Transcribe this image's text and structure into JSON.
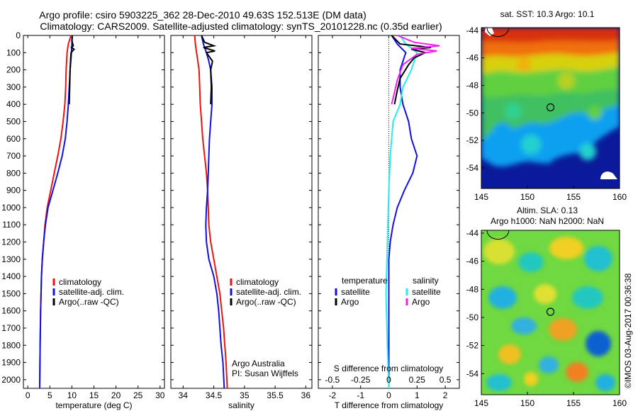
{
  "header": {
    "title_line1": "Argo profile: csiro 5903225_362 28-Dec-2010 49.63S 152.513E (DM data)",
    "title_line2": "Climatology: CARS2009. Satellite-adjusted climatology: synTS_20101228.nc (0.35d earlier)"
  },
  "colors": {
    "climatology": "#ee1111",
    "satellite": "#1010e0",
    "argo": "#000000",
    "salinity_satellite": "#22eeee",
    "salinity_argo": "#ee22ee"
  },
  "footer_text": "©IMOS 03-Aug-2017 00:36:38",
  "chart_data": [
    {
      "type": "line",
      "panel": "temperature",
      "xlabel": "temperature (deg C)",
      "ylabel": "",
      "xlim": [
        -1,
        31
      ],
      "ylim": [
        2050,
        0
      ],
      "xticks": [
        0,
        5,
        10,
        15,
        20,
        25,
        30
      ],
      "yticks": [
        0,
        100,
        200,
        300,
        400,
        500,
        600,
        700,
        800,
        900,
        1000,
        1100,
        1200,
        1300,
        1400,
        1500,
        1600,
        1700,
        1800,
        1900,
        2000
      ],
      "legend": [
        "climatology",
        "satellite-adj. clim.",
        "Argo(..raw -QC)"
      ],
      "series": [
        {
          "name": "climatology",
          "color": "#ee1111",
          "points": [
            [
              9.8,
              0
            ],
            [
              9.2,
              50
            ],
            [
              8.9,
              100
            ],
            [
              8.7,
              200
            ],
            [
              8.6,
              300
            ],
            [
              8.4,
              400
            ],
            [
              8.0,
              500
            ],
            [
              7.5,
              600
            ],
            [
              6.8,
              700
            ],
            [
              6.0,
              800
            ],
            [
              5.2,
              900
            ],
            [
              4.4,
              1000
            ],
            [
              3.9,
              1100
            ],
            [
              3.6,
              1200
            ],
            [
              3.3,
              1300
            ],
            [
              3.1,
              1400
            ],
            [
              2.9,
              1600
            ],
            [
              2.8,
              1800
            ],
            [
              2.7,
              2050
            ]
          ]
        },
        {
          "name": "satellite-adj. clim.",
          "color": "#1010e0",
          "points": [
            [
              10.1,
              0
            ],
            [
              10.0,
              50
            ],
            [
              9.9,
              100
            ],
            [
              9.6,
              200
            ],
            [
              9.4,
              300
            ],
            [
              9.2,
              400
            ],
            [
              8.9,
              500
            ],
            [
              8.5,
              600
            ],
            [
              7.8,
              700
            ],
            [
              6.8,
              800
            ],
            [
              5.7,
              900
            ],
            [
              4.6,
              1000
            ],
            [
              4.0,
              1100
            ],
            [
              3.6,
              1200
            ],
            [
              3.3,
              1300
            ],
            [
              3.1,
              1400
            ],
            [
              2.9,
              1600
            ],
            [
              2.8,
              1800
            ],
            [
              2.7,
              2050
            ]
          ]
        },
        {
          "name": "Argo(..raw -QC)",
          "color": "#000000",
          "points": [
            [
              10.1,
              0
            ],
            [
              10.0,
              30
            ],
            [
              10.3,
              60
            ],
            [
              9.9,
              70
            ],
            [
              10.5,
              80
            ],
            [
              9.8,
              100
            ],
            [
              9.7,
              150
            ],
            [
              9.6,
              200
            ],
            [
              9.5,
              300
            ],
            [
              9.4,
              400
            ]
          ]
        }
      ]
    },
    {
      "type": "line",
      "panel": "salinity",
      "xlabel": "salinity",
      "ylabel": "",
      "xlim": [
        33.8,
        36.1
      ],
      "ylim": [
        2050,
        0
      ],
      "xticks": [
        34,
        34.5,
        35,
        35.5,
        36
      ],
      "xtick_labels": [
        "34",
        "34.5",
        "35",
        "35.5",
        "36"
      ],
      "legend": [
        "climatology",
        "satellite-adj. clim.",
        "Argo(..raw -QC)"
      ],
      "annotations": [
        "Argo Australia",
        "PI: Susan Wijffels"
      ],
      "series": [
        {
          "name": "climatology",
          "color": "#ee1111",
          "points": [
            [
              34.19,
              0
            ],
            [
              34.2,
              50
            ],
            [
              34.22,
              100
            ],
            [
              34.24,
              150
            ],
            [
              34.26,
              200
            ],
            [
              34.27,
              300
            ],
            [
              34.28,
              400
            ],
            [
              34.3,
              500
            ],
            [
              34.32,
              600
            ],
            [
              34.35,
              700
            ],
            [
              34.38,
              800
            ],
            [
              34.4,
              900
            ],
            [
              34.41,
              1000
            ],
            [
              34.42,
              1100
            ],
            [
              34.45,
              1200
            ],
            [
              34.5,
              1300
            ],
            [
              34.55,
              1400
            ],
            [
              34.6,
              1500
            ],
            [
              34.63,
              1600
            ],
            [
              34.66,
              1700
            ],
            [
              34.68,
              1800
            ],
            [
              34.7,
              1900
            ],
            [
              34.72,
              2050
            ]
          ]
        },
        {
          "name": "satellite-adj. clim.",
          "color": "#1010e0",
          "points": [
            [
              34.3,
              0
            ],
            [
              34.33,
              50
            ],
            [
              34.38,
              100
            ],
            [
              34.42,
              150
            ],
            [
              34.45,
              200
            ],
            [
              34.47,
              300
            ],
            [
              34.47,
              400
            ],
            [
              34.45,
              500
            ],
            [
              34.43,
              600
            ],
            [
              34.42,
              700
            ],
            [
              34.41,
              800
            ],
            [
              34.4,
              900
            ],
            [
              34.38,
              1000
            ],
            [
              34.37,
              1100
            ],
            [
              34.38,
              1200
            ],
            [
              34.42,
              1300
            ],
            [
              34.5,
              1400
            ],
            [
              34.55,
              1500
            ],
            [
              34.58,
              1600
            ],
            [
              34.6,
              1700
            ],
            [
              34.62,
              1800
            ],
            [
              34.65,
              1900
            ],
            [
              34.67,
              2050
            ]
          ]
        },
        {
          "name": "Argo(..raw -QC)",
          "color": "#000000",
          "points": [
            [
              34.3,
              0
            ],
            [
              34.35,
              40
            ],
            [
              34.5,
              60
            ],
            [
              34.33,
              70
            ],
            [
              34.52,
              90
            ],
            [
              34.38,
              100
            ],
            [
              34.48,
              150
            ],
            [
              34.45,
              200
            ],
            [
              34.46,
              300
            ],
            [
              34.45,
              400
            ]
          ]
        }
      ]
    },
    {
      "type": "line",
      "panel": "difference",
      "xlabel": "T difference from climatology",
      "x2label": "S difference from climatology",
      "xlim": [
        -2.5,
        2.5
      ],
      "ylim": [
        2050,
        0
      ],
      "xticks": [
        -2,
        -1,
        0,
        1,
        2
      ],
      "s_xticks": [
        -0.5,
        -0.25,
        0,
        0.25,
        0.5
      ],
      "s_xtick_labels": [
        "-0.5",
        "-0.25",
        "0",
        "0.25",
        "0.5"
      ],
      "legend_groups": [
        {
          "title": "temperature",
          "items": [
            "satellite",
            "Argo"
          ]
        },
        {
          "title": "salinity",
          "items": [
            "satellite",
            "Argo"
          ]
        }
      ],
      "series": [
        {
          "name": "satellite",
          "group": "temperature",
          "color": "#1010e0",
          "points": [
            [
              0.1,
              0
            ],
            [
              0.3,
              50
            ],
            [
              0.6,
              100
            ],
            [
              0.5,
              150
            ],
            [
              0.4,
              200
            ],
            [
              0.4,
              300
            ],
            [
              0.5,
              400
            ],
            [
              0.7,
              500
            ],
            [
              0.8,
              600
            ],
            [
              1.0,
              700
            ],
            [
              0.85,
              800
            ],
            [
              0.55,
              900
            ],
            [
              0.3,
              1000
            ],
            [
              0.15,
              1100
            ],
            [
              0.05,
              1200
            ],
            [
              0.0,
              1300
            ],
            [
              0.0,
              1400
            ],
            [
              0.0,
              2050
            ]
          ]
        },
        {
          "name": "satellite",
          "group": "salinity",
          "color": "#22eeee",
          "points": [
            [
              0.4,
              0
            ],
            [
              0.6,
              50
            ],
            [
              1.0,
              100
            ],
            [
              0.9,
              150
            ],
            [
              0.8,
              200
            ],
            [
              0.5,
              300
            ],
            [
              0.4,
              400
            ],
            [
              0.15,
              500
            ],
            [
              0.1,
              600
            ],
            [
              0.05,
              700
            ],
            [
              0.0,
              900
            ],
            [
              -0.05,
              1200
            ],
            [
              -0.1,
              1500
            ],
            [
              -0.05,
              1800
            ],
            [
              0.0,
              2050
            ]
          ]
        },
        {
          "name": "Argo",
          "group": "temperature",
          "color": "#000000",
          "points": [
            [
              0.1,
              0
            ],
            [
              0.4,
              50
            ],
            [
              1.5,
              70
            ],
            [
              0.8,
              80
            ],
            [
              1.3,
              100
            ],
            [
              0.9,
              130
            ],
            [
              0.7,
              170
            ],
            [
              0.4,
              250
            ],
            [
              0.3,
              320
            ],
            [
              0.2,
              400
            ]
          ]
        },
        {
          "name": "Argo",
          "group": "salinity",
          "color": "#ee22ee",
          "points": [
            [
              0.3,
              0
            ],
            [
              0.9,
              40
            ],
            [
              1.8,
              60
            ],
            [
              0.8,
              75
            ],
            [
              1.7,
              90
            ],
            [
              1.0,
              110
            ],
            [
              0.5,
              170
            ],
            [
              0.3,
              260
            ],
            [
              0.2,
              330
            ],
            [
              0.1,
              400
            ]
          ]
        }
      ]
    },
    {
      "type": "heatmap",
      "panel": "map-sst",
      "title": "sat. SST: 10.3 Argo: 10.1",
      "xlim": [
        145,
        160
      ],
      "ylim": [
        -55.5,
        -43.8
      ],
      "xticks": [
        145,
        150,
        155,
        160
      ],
      "yticks": [
        -44,
        -46,
        -48,
        -50,
        -52,
        -54
      ],
      "marker": {
        "lon": 152.5,
        "lat": -49.6
      }
    },
    {
      "type": "heatmap",
      "panel": "map-sla",
      "title_line1": "Altim. SLA: 0.13",
      "title_line2": "Argo h1000: NaN h2000: NaN",
      "xlim": [
        145,
        160
      ],
      "ylim": [
        -55.5,
        -43.8
      ],
      "xticks": [
        145,
        150,
        155,
        160
      ],
      "yticks": [
        -44,
        -46,
        -48,
        -50,
        -52,
        -54
      ],
      "marker": {
        "lon": 152.5,
        "lat": -49.6
      }
    }
  ]
}
